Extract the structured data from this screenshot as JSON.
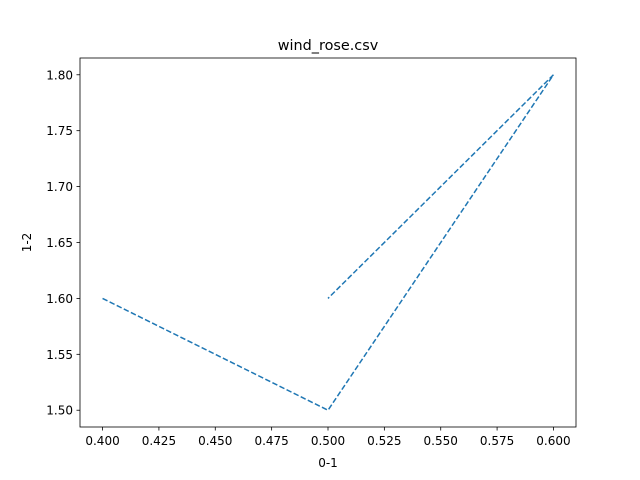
{
  "chart_data": {
    "type": "line",
    "title": "wind_rose.csv",
    "xlabel": "0-1",
    "ylabel": "1-2",
    "xlim": [
      0.39,
      0.61
    ],
    "ylim": [
      1.485,
      1.815
    ],
    "grid": false,
    "x_ticks": [
      "0.400",
      "0.425",
      "0.450",
      "0.475",
      "0.500",
      "0.525",
      "0.550",
      "0.575",
      "0.600"
    ],
    "y_ticks": [
      "1.50",
      "1.55",
      "1.60",
      "1.65",
      "1.70",
      "1.75",
      "1.80"
    ],
    "series": [
      {
        "x": [
          0.4,
          0.5,
          0.6,
          0.5
        ],
        "y": [
          1.6,
          1.5,
          1.8,
          1.6
        ],
        "color": "#1f77b4",
        "line_style": "dashed"
      }
    ]
  }
}
